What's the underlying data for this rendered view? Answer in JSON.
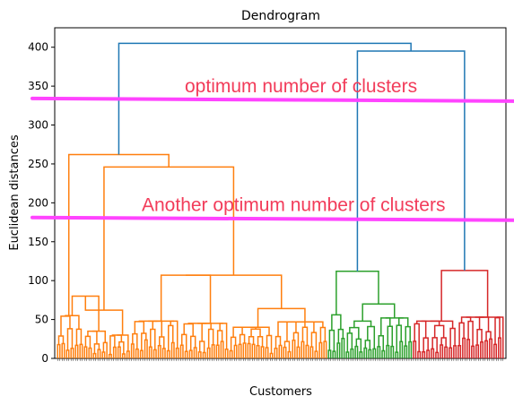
{
  "chart_data": {
    "type": "dendrogram",
    "title": "Dendrogram",
    "xlabel": "Customers",
    "ylabel": "Euclidean distances",
    "ylim": [
      0,
      425
    ],
    "yticks": [
      0,
      50,
      100,
      150,
      200,
      250,
      300,
      350,
      400
    ],
    "grid": false,
    "top_merges": [
      {
        "height": 405,
        "joins": [
          "orange cluster",
          "blue subtree"
        ],
        "color": "#1f77b4"
      },
      {
        "height": 395,
        "joins": [
          "green cluster",
          "red cluster"
        ],
        "color": "#1f77b4"
      },
      {
        "height": 262,
        "joins": [
          "orange left group",
          "orange right group"
        ],
        "color": "#ff7f0e"
      },
      {
        "height": 246,
        "joins": [
          "orange mid group",
          "orange far-right group"
        ],
        "color": "#ff7f0e"
      },
      {
        "height": 113,
        "joins": [
          "red left",
          "red right"
        ],
        "color": "#d62728"
      },
      {
        "height": 112,
        "joins": [
          "green left",
          "green right"
        ],
        "color": "#2ca02c"
      },
      {
        "height": 107,
        "joins": [
          "orange sub A",
          "orange sub B"
        ],
        "color": "#ff7f0e"
      }
    ],
    "clusters": [
      {
        "color": "#ff7f0e",
        "size": 121
      },
      {
        "color": "#2ca02c",
        "size": 38
      },
      {
        "color": "#d62728",
        "size": 41
      }
    ],
    "annotations": [
      {
        "text": "optimum number of clusters",
        "y": 333,
        "color": "#f23c5a"
      },
      {
        "text": "Another optimum number of clusters",
        "y": 180,
        "color": "#f23c5a"
      }
    ],
    "cut_line_color": "#ff44ff"
  }
}
